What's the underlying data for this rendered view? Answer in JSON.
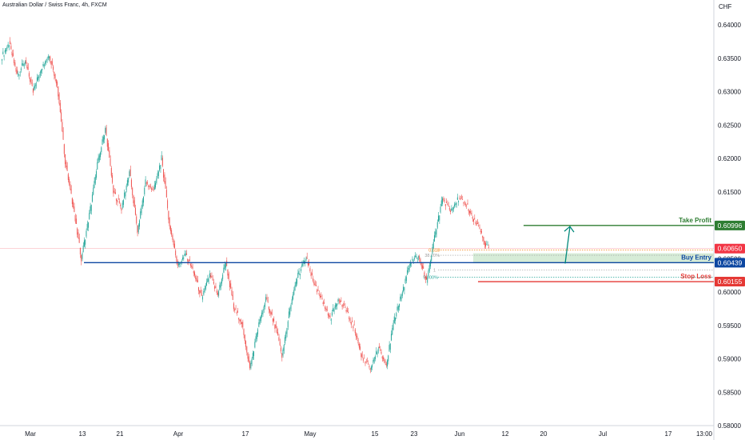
{
  "header": {
    "title": "Australian Dollar / Swiss Franc, 4h, FXCM",
    "currency": "CHF"
  },
  "chart_data": {
    "type": "candlestick",
    "title": "Australian Dollar / Swiss Franc, 4h, FXCM",
    "ylim": [
      0.58,
      0.6425
    ],
    "grid": false,
    "y_ticks": [
      "0.64000",
      "0.63500",
      "0.63000",
      "0.62500",
      "0.62000",
      "0.61500",
      "0.61000",
      "0.60500",
      "0.60000",
      "0.59500",
      "0.59000",
      "0.58500",
      "0.58000"
    ],
    "x_ticks": [
      "Mar",
      "13",
      "21",
      "Apr",
      "17",
      "May",
      "15",
      "23",
      "Jun",
      "12",
      "20",
      "Jul",
      "17",
      "13:00"
    ],
    "price_path": [
      [
        0,
        0.635
      ],
      [
        3,
        0.6372
      ],
      [
        6,
        0.6325
      ],
      [
        9,
        0.6345
      ],
      [
        12,
        0.63
      ],
      [
        15,
        0.6335
      ],
      [
        18,
        0.6355
      ],
      [
        21,
        0.631
      ],
      [
        24,
        0.6195
      ],
      [
        27,
        0.6125
      ],
      [
        30,
        0.605
      ],
      [
        33,
        0.6115
      ],
      [
        36,
        0.619
      ],
      [
        39,
        0.6245
      ],
      [
        42,
        0.615
      ],
      [
        45,
        0.6125
      ],
      [
        48,
        0.618
      ],
      [
        51,
        0.609
      ],
      [
        54,
        0.6165
      ],
      [
        57,
        0.615
      ],
      [
        60,
        0.62
      ],
      [
        63,
        0.61
      ],
      [
        66,
        0.604
      ],
      [
        69,
        0.6055
      ],
      [
        72,
        0.603
      ],
      [
        75,
        0.599
      ],
      [
        78,
        0.6025
      ],
      [
        81,
        0.5995
      ],
      [
        84,
        0.6045
      ],
      [
        87,
        0.5975
      ],
      [
        90,
        0.5955
      ],
      [
        93,
        0.5885
      ],
      [
        96,
        0.5945
      ],
      [
        99,
        0.599
      ],
      [
        102,
        0.5955
      ],
      [
        105,
        0.5905
      ],
      [
        108,
        0.5975
      ],
      [
        111,
        0.6025
      ],
      [
        114,
        0.605
      ],
      [
        117,
        0.601
      ],
      [
        120,
        0.5985
      ],
      [
        123,
        0.596
      ],
      [
        126,
        0.599
      ],
      [
        129,
        0.597
      ],
      [
        132,
        0.5945
      ],
      [
        135,
        0.59
      ],
      [
        138,
        0.5885
      ],
      [
        141,
        0.5915
      ],
      [
        144,
        0.589
      ],
      [
        147,
        0.596
      ],
      [
        150,
        0.6
      ],
      [
        153,
        0.6045
      ],
      [
        156,
        0.6055
      ],
      [
        159,
        0.6015
      ],
      [
        162,
        0.608
      ],
      [
        165,
        0.614
      ],
      [
        168,
        0.612
      ],
      [
        171,
        0.614
      ],
      [
        174,
        0.613
      ],
      [
        177,
        0.6105
      ],
      [
        180,
        0.6085
      ],
      [
        181,
        0.6068
      ],
      [
        182,
        0.6065
      ]
    ],
    "levels": [
      {
        "name": "Take Profit",
        "value": 0.60996,
        "label": "Take Profit",
        "tag": "0.60996",
        "color": "#2e7d32"
      },
      {
        "name": "Buy Entry",
        "value": 0.60439,
        "label": "Buy Entry",
        "tag": "0.60439",
        "color": "#0d47a1"
      },
      {
        "name": "Stop Loss",
        "value": 0.60155,
        "label": "Stop Loss",
        "tag": "0.60155",
        "color": "#e53935"
      }
    ],
    "current_price": {
      "value": 0.6065,
      "tag": "0.60650",
      "color": "#f23645"
    },
    "fib_levels": [
      {
        "label": "0.618",
        "value": 0.6063,
        "color": "#f57c00"
      },
      {
        "label": "38.20%",
        "value": 0.6055,
        "color": "#9e9e9e"
      },
      {
        "label": "1",
        "value": 0.6033,
        "color": "#9e9e9e"
      },
      {
        "label": "50.00%",
        "value": 0.6022,
        "color": "#26a69a"
      }
    ],
    "buy_zone": {
      "from": 0.6043,
      "to": 0.6058,
      "color": "#c8e6c9"
    },
    "projected_move": {
      "from": 0.6045,
      "to": 0.6098,
      "color": "#00897b"
    }
  }
}
